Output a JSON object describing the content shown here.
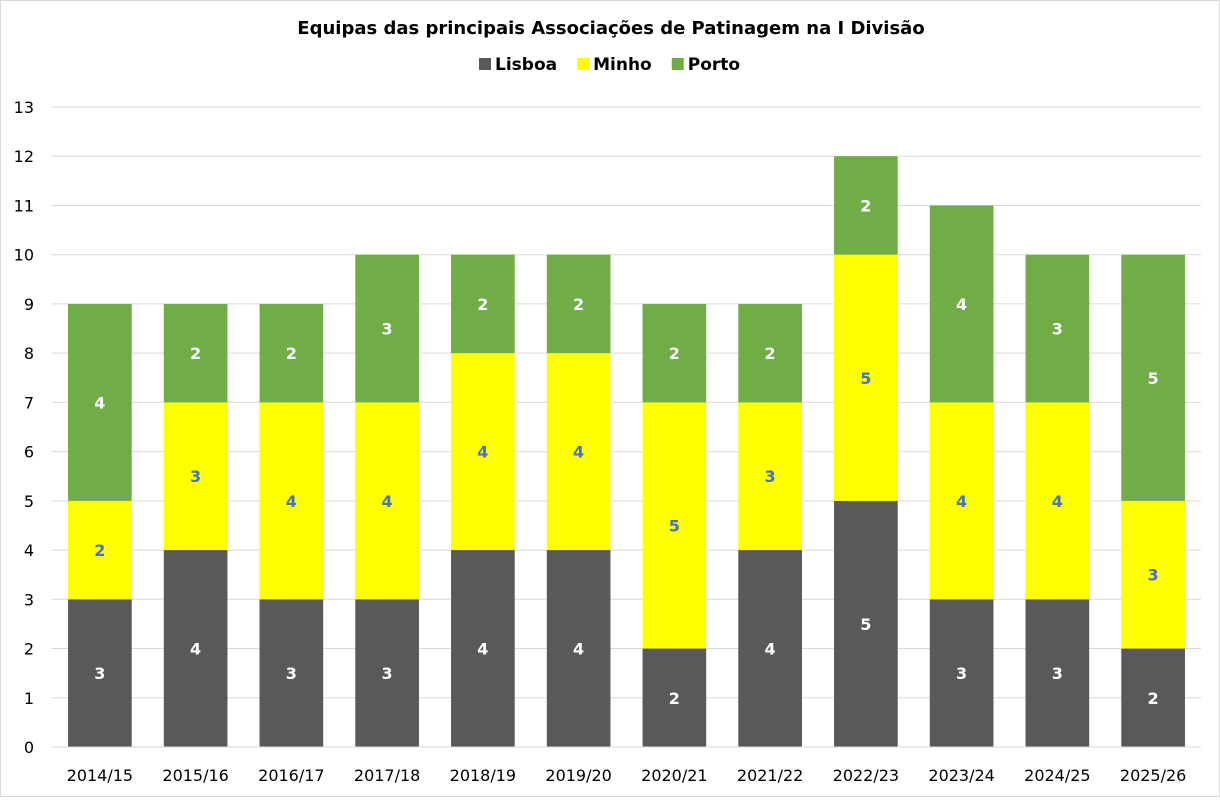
{
  "chart_data": {
    "type": "bar",
    "stacked": true,
    "title": "Equipas das principais Associações de Patinagem na I Divisão",
    "xlabel": "",
    "ylabel": "",
    "categories": [
      "2014/15",
      "2015/16",
      "2016/17",
      "2017/18",
      "2018/19",
      "2019/20",
      "2020/21",
      "2021/22",
      "2022/23",
      "2023/24",
      "2024/25",
      "2025/26"
    ],
    "series": [
      {
        "name": "Lisboa",
        "color": "#595959",
        "label_color": "#ffffff",
        "values": [
          3,
          4,
          3,
          3,
          4,
          4,
          2,
          4,
          5,
          3,
          3,
          2
        ]
      },
      {
        "name": "Minho",
        "color": "#ffff00",
        "label_color": "#4472c4",
        "values": [
          2,
          3,
          4,
          4,
          4,
          4,
          5,
          3,
          5,
          4,
          4,
          3
        ]
      },
      {
        "name": "Porto",
        "color": "#70ad47",
        "label_color": "#ffffff",
        "values": [
          4,
          2,
          2,
          3,
          2,
          2,
          2,
          2,
          2,
          4,
          3,
          5
        ]
      }
    ],
    "ylim": [
      0,
      13
    ],
    "yticks": [
      0,
      1,
      2,
      3,
      4,
      5,
      6,
      7,
      8,
      9,
      10,
      11,
      12,
      13
    ],
    "grid": true,
    "legend": "top-center",
    "data_labels": true
  }
}
